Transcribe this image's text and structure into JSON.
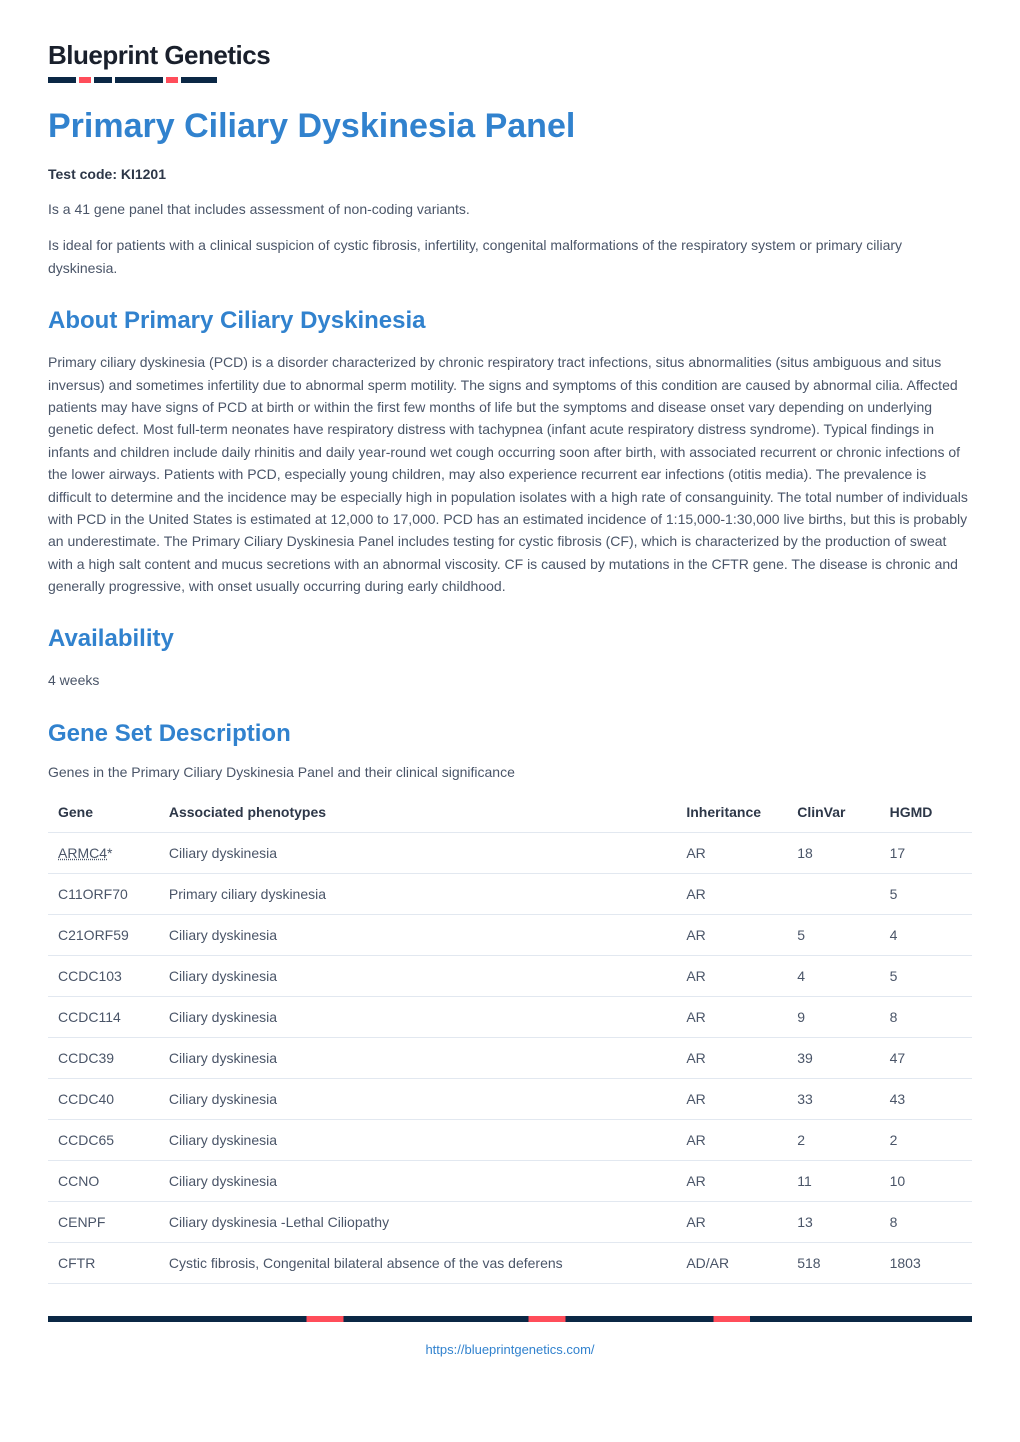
{
  "logo": {
    "text": "Blueprint Genetics"
  },
  "title": "Primary Ciliary Dyskinesia Panel",
  "test_code_label": "Test code: KI1201",
  "intro_paragraphs": [
    "Is a 41 gene panel that includes assessment of non-coding variants.",
    "Is ideal for patients with a clinical suspicion of cystic fibrosis, infertility, congenital malformations of the respiratory system or primary ciliary dyskinesia."
  ],
  "about": {
    "heading": "About Primary Ciliary Dyskinesia",
    "body": "Primary ciliary dyskinesia (PCD) is a disorder characterized by chronic respiratory tract infections, situs abnormalities (situs ambiguous and situs inversus) and sometimes infertility due to abnormal sperm motility. The signs and symptoms of this condition are caused by abnormal cilia. Affected patients may have signs of PCD at birth or within the first few months of life but the symptoms and disease onset vary depending on underlying genetic defect. Most full-term neonates have respiratory distress with tachypnea (infant acute respiratory distress syndrome). Typical findings in infants and children include daily rhinitis and daily year-round wet cough occurring soon after birth, with associated recurrent or chronic infections of the lower airways. Patients with PCD, especially young children, may also experience recurrent ear infections (otitis media). The prevalence is difficult to determine and the incidence may be especially high in population isolates with a high rate of consanguinity. The total number of individuals with PCD in the United States is estimated at 12,000 to 17,000. PCD has an estimated incidence of 1:15,000-1:30,000 live births, but this is probably an underestimate. The Primary Ciliary Dyskinesia Panel includes testing for cystic fibrosis (CF), which is characterized by the production of sweat with a high salt content and mucus secretions with an abnormal viscosity. CF is caused by mutations in the CFTR gene. The disease is chronic and generally progressive, with onset usually occurring during early childhood."
  },
  "availability": {
    "heading": "Availability",
    "value": "4 weeks"
  },
  "geneset": {
    "heading": "Gene Set Description",
    "caption": "Genes in the Primary Ciliary Dyskinesia Panel and their clinical significance",
    "columns": [
      "Gene",
      "Associated phenotypes",
      "Inheritance",
      "ClinVar",
      "HGMD"
    ],
    "col_widths": [
      "12%",
      "56%",
      "12%",
      "10%",
      "10%"
    ],
    "rows": [
      {
        "gene": "ARMC4",
        "gene_link": true,
        "gene_suffix": "*",
        "phenotypes": "Ciliary dyskinesia",
        "inheritance": "AR",
        "clinvar": "18",
        "hgmd": "17"
      },
      {
        "gene": "C11ORF70",
        "gene_link": false,
        "gene_suffix": "",
        "phenotypes": "Primary ciliary dyskinesia",
        "inheritance": "AR",
        "clinvar": "",
        "hgmd": "5"
      },
      {
        "gene": "C21ORF59",
        "gene_link": false,
        "gene_suffix": "",
        "phenotypes": "Ciliary dyskinesia",
        "inheritance": "AR",
        "clinvar": "5",
        "hgmd": "4"
      },
      {
        "gene": "CCDC103",
        "gene_link": false,
        "gene_suffix": "",
        "phenotypes": "Ciliary dyskinesia",
        "inheritance": "AR",
        "clinvar": "4",
        "hgmd": "5"
      },
      {
        "gene": "CCDC114",
        "gene_link": false,
        "gene_suffix": "",
        "phenotypes": "Ciliary dyskinesia",
        "inheritance": "AR",
        "clinvar": "9",
        "hgmd": "8"
      },
      {
        "gene": "CCDC39",
        "gene_link": false,
        "gene_suffix": "",
        "phenotypes": "Ciliary dyskinesia",
        "inheritance": "AR",
        "clinvar": "39",
        "hgmd": "47"
      },
      {
        "gene": "CCDC40",
        "gene_link": false,
        "gene_suffix": "",
        "phenotypes": "Ciliary dyskinesia",
        "inheritance": "AR",
        "clinvar": "33",
        "hgmd": "43"
      },
      {
        "gene": "CCDC65",
        "gene_link": false,
        "gene_suffix": "",
        "phenotypes": "Ciliary dyskinesia",
        "inheritance": "AR",
        "clinvar": "2",
        "hgmd": "2"
      },
      {
        "gene": "CCNO",
        "gene_link": false,
        "gene_suffix": "",
        "phenotypes": "Ciliary dyskinesia",
        "inheritance": "AR",
        "clinvar": "11",
        "hgmd": "10"
      },
      {
        "gene": "CENPF",
        "gene_link": false,
        "gene_suffix": "",
        "phenotypes": "Ciliary dyskinesia -Lethal Ciliopathy",
        "inheritance": "AR",
        "clinvar": "13",
        "hgmd": "8"
      },
      {
        "gene": "CFTR",
        "gene_link": false,
        "gene_suffix": "",
        "phenotypes": "Cystic fibrosis, Congenital bilateral absence of the vas deferens",
        "inheritance": "AD/AR",
        "clinvar": "518",
        "hgmd": "1803"
      }
    ]
  },
  "footer_url": "https://blueprintgenetics.com/",
  "colors": {
    "heading": "#3182ce",
    "body_text": "#4a5568",
    "strong_text": "#2d3748",
    "border": "#e2e8f0",
    "logo_navy": "#0b2845",
    "logo_red": "#ff4d5a",
    "background": "#ffffff"
  },
  "typography": {
    "h1_size_pt": 26,
    "h2_size_pt": 18,
    "body_size_pt": 10.5,
    "table_size_pt": 10.5
  }
}
